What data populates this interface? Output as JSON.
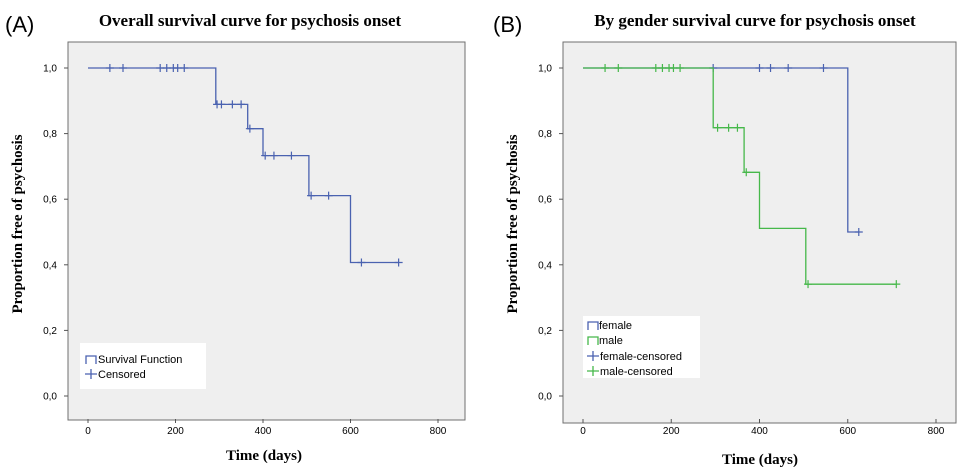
{
  "panels": [
    {
      "letter": "(A)",
      "title": "Overall survival curve for psychosis onset",
      "xlabel": "Time (days)",
      "ylabel": "Proportion free of psychosis",
      "legend": [
        "Survival Function",
        "Censored"
      ]
    },
    {
      "letter": "(B)",
      "title": "By gender survival curve for psychosis onset",
      "xlabel": "Time (days)",
      "ylabel": "Proportion free of psychosis",
      "legend": [
        "female",
        "male",
        "female-censored",
        "male-censored"
      ]
    }
  ],
  "chart_data": [
    {
      "type": "line",
      "title": "Overall survival curve for psychosis onset",
      "xlabel": "Time (days)",
      "ylabel": "Proportion free of psychosis",
      "xlim": [
        0,
        800
      ],
      "ylim": [
        0,
        1
      ],
      "x_ticks": [
        "0",
        "200",
        "400",
        "600",
        "800"
      ],
      "y_ticks": [
        "0,0",
        "0,2",
        "0,4",
        "0,6",
        "0,8",
        "1,0"
      ],
      "step": true,
      "grid": false,
      "legend_position": "bottom-left",
      "series": [
        {
          "name": "Survival Function",
          "color": "#4a62b0",
          "x": [
            0,
            292,
            292,
            365,
            365,
            400,
            400,
            505,
            505,
            600,
            600,
            710
          ],
          "y": [
            1.0,
            1.0,
            0.889,
            0.889,
            0.815,
            0.815,
            0.733,
            0.733,
            0.611,
            0.611,
            0.407,
            0.407
          ],
          "censored_x": [
            50,
            80,
            165,
            180,
            195,
            205,
            220,
            295,
            305,
            330,
            350,
            370,
            405,
            425,
            465,
            510,
            550,
            625,
            710
          ],
          "censored_y": [
            1.0,
            1.0,
            1.0,
            1.0,
            1.0,
            1.0,
            1.0,
            0.889,
            0.889,
            0.889,
            0.889,
            0.815,
            0.733,
            0.733,
            0.733,
            0.611,
            0.611,
            0.407,
            0.407
          ]
        }
      ]
    },
    {
      "type": "line",
      "title": "By gender survival curve for psychosis onset",
      "xlabel": "Time (days)",
      "ylabel": "Proportion free of psychosis",
      "xlim": [
        0,
        800
      ],
      "ylim": [
        0,
        1
      ],
      "x_ticks": [
        "0",
        "200",
        "400",
        "600",
        "800"
      ],
      "y_ticks": [
        "0,0",
        "0,2",
        "0,4",
        "0,6",
        "0,8",
        "1,0"
      ],
      "step": true,
      "grid": false,
      "legend_position": "bottom-left",
      "series": [
        {
          "name": "female",
          "color": "#4a62b0",
          "x": [
            0,
            600,
            600,
            625
          ],
          "y": [
            1.0,
            1.0,
            0.5,
            0.5
          ],
          "censored_x": [
            295,
            400,
            425,
            465,
            545,
            625
          ],
          "censored_y": [
            1.0,
            1.0,
            1.0,
            1.0,
            1.0,
            0.5
          ]
        },
        {
          "name": "male",
          "color": "#46b84a",
          "x": [
            0,
            295,
            295,
            365,
            365,
            400,
            400,
            505,
            505,
            710
          ],
          "y": [
            1.0,
            1.0,
            0.818,
            0.818,
            0.682,
            0.682,
            0.511,
            0.511,
            0.341,
            0.341
          ],
          "censored_x": [
            50,
            80,
            165,
            180,
            195,
            205,
            220,
            305,
            330,
            350,
            370,
            510,
            710
          ],
          "censored_y": [
            1.0,
            1.0,
            1.0,
            1.0,
            1.0,
            1.0,
            1.0,
            0.818,
            0.818,
            0.818,
            0.682,
            0.341,
            0.341
          ]
        }
      ]
    }
  ]
}
